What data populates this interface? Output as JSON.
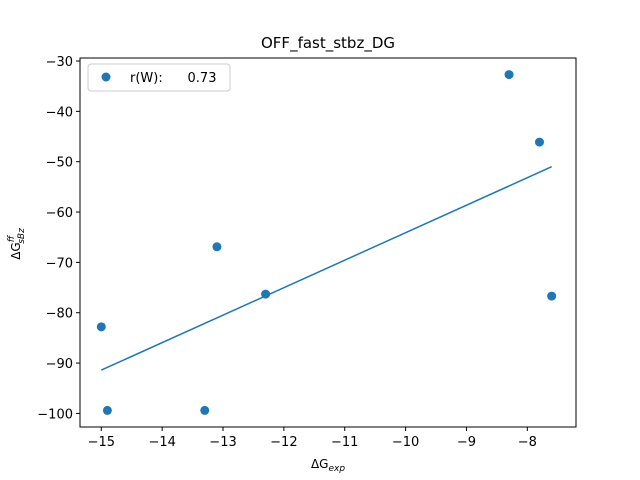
{
  "chart_data": {
    "type": "scatter",
    "title": "OFF_fast_stbz_DG",
    "xlabel": {
      "prefix": "ΔG",
      "sub": "exp"
    },
    "ylabel": {
      "prefix": "ΔG",
      "sup": "ff",
      "sub": "sBz"
    },
    "xlim": [
      -15.35,
      -7.2
    ],
    "ylim": [
      -102.7,
      -29.4
    ],
    "xticks": [
      -15,
      -14,
      -13,
      -12,
      -11,
      -10,
      -9,
      -8
    ],
    "xtick_labels": [
      "−15",
      "−14",
      "−13",
      "−12",
      "−11",
      "−10",
      "−9",
      "−8"
    ],
    "yticks": [
      -100,
      -90,
      -80,
      -70,
      -60,
      -50,
      -40,
      -30
    ],
    "ytick_labels": [
      "−100",
      "−90",
      "−80",
      "−70",
      "−60",
      "−50",
      "−40",
      "−30"
    ],
    "grid": false,
    "legend_position": "top-left",
    "series": [
      {
        "name": "r(W):      0.73",
        "kind": "scatter",
        "color": "#1f77b4",
        "x": [
          -15.0,
          -14.9,
          -13.3,
          -13.1,
          -12.3,
          -8.3,
          -7.8,
          -7.6
        ],
        "y": [
          -82.8,
          -99.4,
          -99.4,
          -66.9,
          -76.3,
          -32.7,
          -46.1,
          -76.7
        ]
      },
      {
        "kind": "line",
        "color": "#1f77b4",
        "x": [
          -15.0,
          -7.6
        ],
        "y": [
          -91.4,
          -51.0
        ]
      }
    ]
  }
}
